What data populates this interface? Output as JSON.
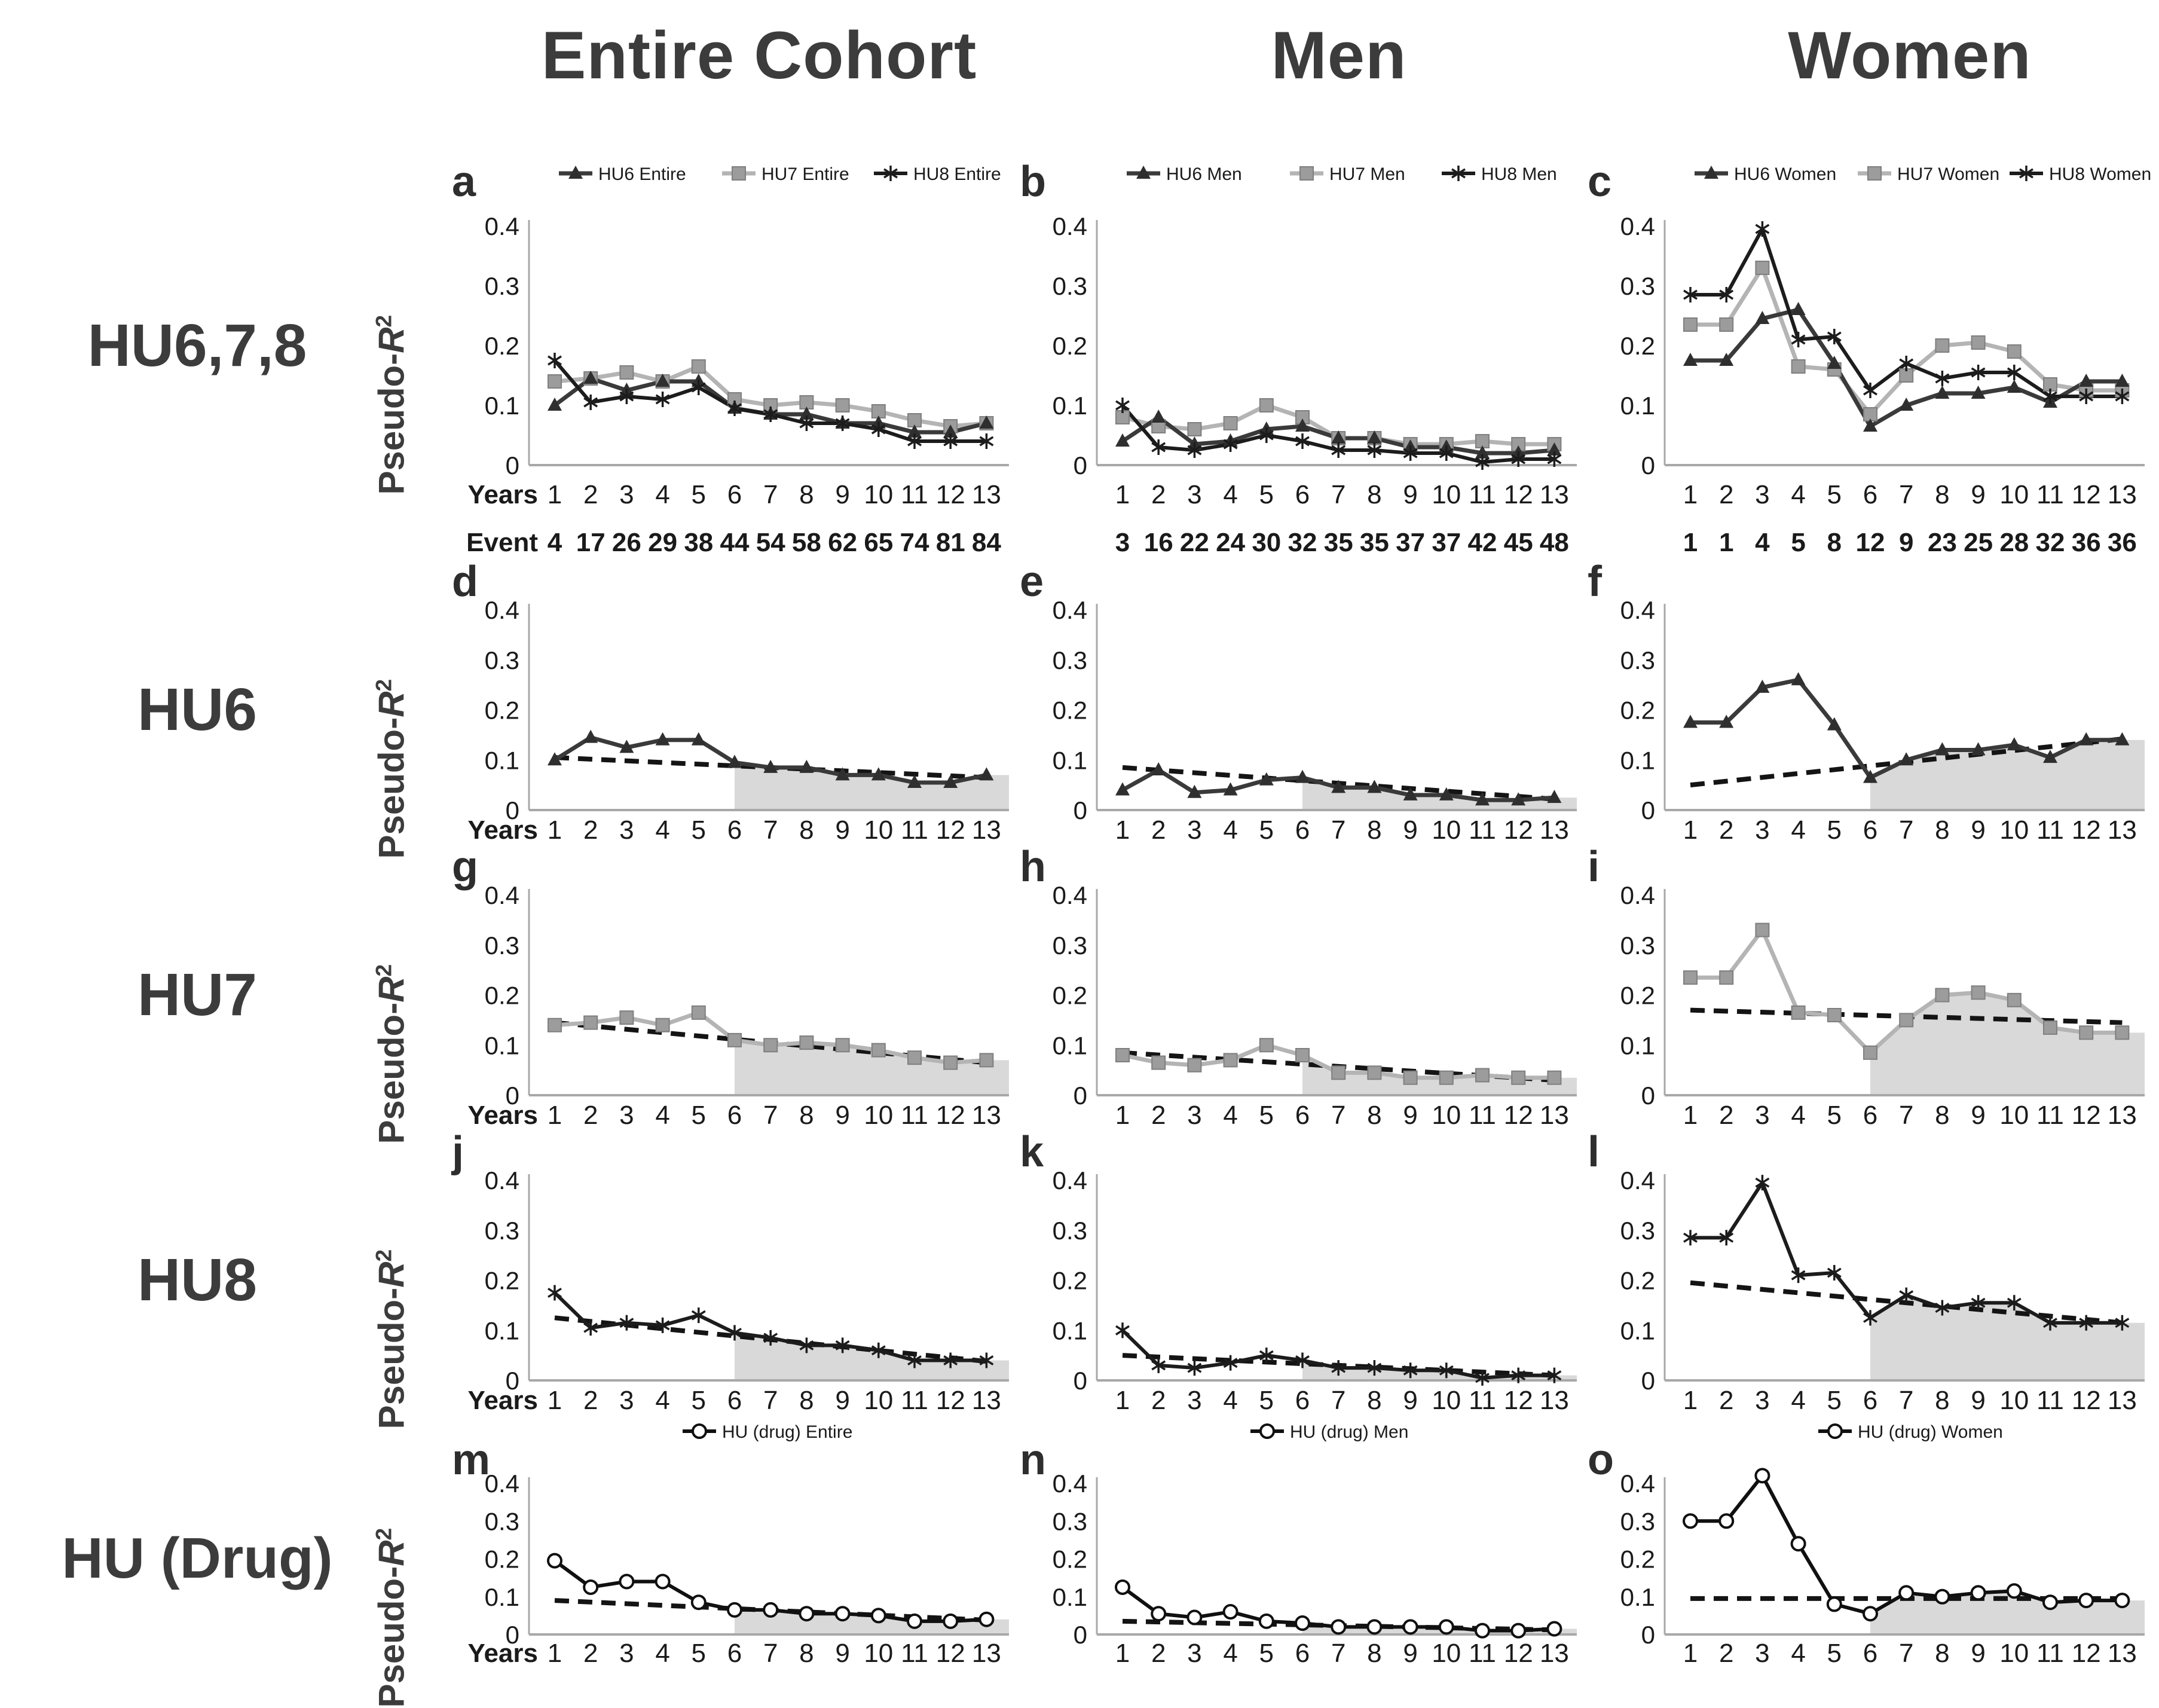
{
  "title_columns": [
    "Entire Cohort",
    "Men",
    "Women"
  ],
  "row_labels": [
    "HU6,7,8",
    "HU6",
    "HU7",
    "HU8",
    "HU (Drug)"
  ],
  "ylabel": {
    "prefix": "Pseudo-",
    "symbol": "R",
    "sup": "2"
  },
  "axis": {
    "ylim": [
      0,
      0.4
    ],
    "y_ticks": [
      "0.4",
      "0.3",
      "0.2",
      "0.1",
      "0"
    ],
    "x_ticks": [
      "1",
      "2",
      "3",
      "4",
      "5",
      "6",
      "7",
      "8",
      "9",
      "10",
      "11",
      "12",
      "13"
    ],
    "years_label": "Years",
    "event_label": "Event"
  },
  "layout": {
    "grid": false,
    "legend_position": "top center",
    "shaded_region_years": [
      6,
      13
    ]
  },
  "colors": {
    "hu6_line": "#3a3a3a",
    "hu6_fill": "#2f2f2f",
    "hu7_line": "#b4b4b4",
    "hu7_fill": "#9c9c9c",
    "hu7_edge": "#7f7f7f",
    "hu8_line": "#1c1c1c",
    "drug_line": "#101010",
    "trend": "#141414",
    "shade": "#d9d9d9",
    "axis": "#a8a8a8",
    "text": "#1a1a1a",
    "heading": "#3c3c3c"
  },
  "chart_data": [
    {
      "panel": "a",
      "row": 0,
      "col": 0,
      "type": "line",
      "show_legend": true,
      "show_years_label": true,
      "show_event_label": true,
      "events": [
        4,
        17,
        26,
        29,
        38,
        44,
        54,
        58,
        62,
        65,
        74,
        81,
        84
      ],
      "series": [
        {
          "name": "HU6 Entire",
          "marker": "triangle",
          "values": [
            0.1,
            0.145,
            0.125,
            0.14,
            0.14,
            0.095,
            0.085,
            0.085,
            0.07,
            0.07,
            0.055,
            0.055,
            0.07
          ]
        },
        {
          "name": "HU7 Entire",
          "marker": "square",
          "values": [
            0.14,
            0.145,
            0.155,
            0.14,
            0.165,
            0.11,
            0.1,
            0.105,
            0.1,
            0.09,
            0.075,
            0.065,
            0.07
          ]
        },
        {
          "name": "HU8 Entire",
          "marker": "asterisk",
          "values": [
            0.175,
            0.105,
            0.115,
            0.11,
            0.13,
            0.095,
            0.085,
            0.07,
            0.07,
            0.06,
            0.04,
            0.04,
            0.04
          ]
        }
      ],
      "trend": null,
      "shaded": false
    },
    {
      "panel": "b",
      "row": 0,
      "col": 1,
      "type": "line",
      "show_legend": true,
      "show_years_label": false,
      "show_event_label": false,
      "events": [
        3,
        16,
        22,
        24,
        30,
        32,
        35,
        35,
        37,
        37,
        42,
        45,
        48
      ],
      "series": [
        {
          "name": "HU6 Men",
          "marker": "triangle",
          "values": [
            0.04,
            0.08,
            0.035,
            0.04,
            0.06,
            0.065,
            0.045,
            0.045,
            0.03,
            0.03,
            0.02,
            0.02,
            0.025
          ]
        },
        {
          "name": "HU7 Men",
          "marker": "square",
          "values": [
            0.08,
            0.065,
            0.06,
            0.07,
            0.1,
            0.08,
            0.045,
            0.045,
            0.035,
            0.035,
            0.04,
            0.035,
            0.035
          ]
        },
        {
          "name": "HU8 Men",
          "marker": "asterisk",
          "values": [
            0.1,
            0.03,
            0.025,
            0.035,
            0.05,
            0.04,
            0.025,
            0.025,
            0.02,
            0.02,
            0.005,
            0.01,
            0.01
          ]
        }
      ],
      "trend": null,
      "shaded": false
    },
    {
      "panel": "c",
      "row": 0,
      "col": 2,
      "type": "line",
      "show_legend": true,
      "show_years_label": false,
      "show_event_label": false,
      "events": [
        1,
        1,
        4,
        5,
        8,
        12,
        9,
        23,
        25,
        28,
        32,
        36,
        36
      ],
      "series": [
        {
          "name": "HU6 Women",
          "marker": "triangle",
          "values": [
            0.175,
            0.175,
            0.245,
            0.26,
            0.17,
            0.065,
            0.1,
            0.12,
            0.12,
            0.13,
            0.105,
            0.14,
            0.14
          ]
        },
        {
          "name": "HU7 Women",
          "marker": "square",
          "values": [
            0.235,
            0.235,
            0.33,
            0.165,
            0.16,
            0.085,
            0.15,
            0.2,
            0.205,
            0.19,
            0.135,
            0.125,
            0.125
          ]
        },
        {
          "name": "HU8 Women",
          "marker": "asterisk",
          "values": [
            0.285,
            0.285,
            0.395,
            0.21,
            0.215,
            0.125,
            0.17,
            0.145,
            0.155,
            0.155,
            0.115,
            0.115,
            0.115
          ]
        }
      ],
      "trend": null,
      "shaded": false
    },
    {
      "panel": "d",
      "row": 1,
      "col": 0,
      "type": "line",
      "show_legend": false,
      "show_years_label": true,
      "show_event_label": false,
      "events": null,
      "series": [
        {
          "name": "HU6 Entire",
          "marker": "triangle",
          "values": [
            0.1,
            0.145,
            0.125,
            0.14,
            0.14,
            0.095,
            0.085,
            0.085,
            0.07,
            0.07,
            0.055,
            0.055,
            0.07
          ]
        }
      ],
      "trend": [
        0.105,
        0.065
      ],
      "shaded": true
    },
    {
      "panel": "e",
      "row": 1,
      "col": 1,
      "type": "line",
      "show_legend": false,
      "show_years_label": false,
      "show_event_label": false,
      "events": null,
      "series": [
        {
          "name": "HU6 Men",
          "marker": "triangle",
          "values": [
            0.04,
            0.08,
            0.035,
            0.04,
            0.06,
            0.065,
            0.045,
            0.045,
            0.03,
            0.03,
            0.02,
            0.02,
            0.025
          ]
        }
      ],
      "trend": [
        0.085,
        0.022
      ],
      "shaded": true
    },
    {
      "panel": "f",
      "row": 1,
      "col": 2,
      "type": "line",
      "show_legend": false,
      "show_years_label": false,
      "show_event_label": false,
      "events": null,
      "series": [
        {
          "name": "HU6 Women",
          "marker": "triangle",
          "values": [
            0.175,
            0.175,
            0.245,
            0.26,
            0.17,
            0.065,
            0.1,
            0.12,
            0.12,
            0.13,
            0.105,
            0.14,
            0.14
          ]
        }
      ],
      "trend": [
        0.05,
        0.142
      ],
      "shaded": true
    },
    {
      "panel": "g",
      "row": 2,
      "col": 0,
      "type": "line",
      "show_legend": false,
      "show_years_label": true,
      "show_event_label": false,
      "events": null,
      "series": [
        {
          "name": "HU7 Entire",
          "marker": "square",
          "values": [
            0.14,
            0.145,
            0.155,
            0.14,
            0.165,
            0.11,
            0.1,
            0.105,
            0.1,
            0.09,
            0.075,
            0.065,
            0.07
          ]
        }
      ],
      "trend": [
        0.145,
        0.065
      ],
      "shaded": true
    },
    {
      "panel": "h",
      "row": 2,
      "col": 1,
      "type": "line",
      "show_legend": false,
      "show_years_label": false,
      "show_event_label": false,
      "events": null,
      "series": [
        {
          "name": "HU7 Men",
          "marker": "square",
          "values": [
            0.08,
            0.065,
            0.06,
            0.07,
            0.1,
            0.08,
            0.045,
            0.045,
            0.035,
            0.035,
            0.04,
            0.035,
            0.035
          ]
        }
      ],
      "trend": [
        0.085,
        0.03
      ],
      "shaded": true
    },
    {
      "panel": "i",
      "row": 2,
      "col": 2,
      "type": "line",
      "show_legend": false,
      "show_years_label": false,
      "show_event_label": false,
      "events": null,
      "series": [
        {
          "name": "HU7 Women",
          "marker": "square",
          "values": [
            0.235,
            0.235,
            0.33,
            0.165,
            0.16,
            0.085,
            0.15,
            0.2,
            0.205,
            0.19,
            0.135,
            0.125,
            0.125
          ]
        }
      ],
      "trend": [
        0.17,
        0.145
      ],
      "shaded": true
    },
    {
      "panel": "j",
      "row": 3,
      "col": 0,
      "type": "line",
      "show_legend": false,
      "show_years_label": true,
      "show_event_label": false,
      "events": null,
      "series": [
        {
          "name": "HU8 Entire",
          "marker": "asterisk",
          "values": [
            0.175,
            0.105,
            0.115,
            0.11,
            0.13,
            0.095,
            0.085,
            0.07,
            0.07,
            0.06,
            0.04,
            0.04,
            0.04
          ]
        }
      ],
      "trend": [
        0.125,
        0.038
      ],
      "shaded": true
    },
    {
      "panel": "k",
      "row": 3,
      "col": 1,
      "type": "line",
      "show_legend": false,
      "show_years_label": false,
      "show_event_label": false,
      "events": null,
      "series": [
        {
          "name": "HU8 Men",
          "marker": "asterisk",
          "values": [
            0.1,
            0.03,
            0.025,
            0.035,
            0.05,
            0.04,
            0.025,
            0.025,
            0.02,
            0.02,
            0.005,
            0.01,
            0.01
          ]
        }
      ],
      "trend": [
        0.05,
        0.01
      ],
      "shaded": true
    },
    {
      "panel": "l",
      "row": 3,
      "col": 2,
      "type": "line",
      "show_legend": false,
      "show_years_label": false,
      "show_event_label": false,
      "events": null,
      "series": [
        {
          "name": "HU8 Women",
          "marker": "asterisk",
          "values": [
            0.285,
            0.285,
            0.395,
            0.21,
            0.215,
            0.125,
            0.17,
            0.145,
            0.155,
            0.155,
            0.115,
            0.115,
            0.115
          ]
        }
      ],
      "trend": [
        0.195,
        0.115
      ],
      "shaded": true
    },
    {
      "panel": "m",
      "row": 4,
      "col": 0,
      "type": "line",
      "show_legend": true,
      "show_years_label": true,
      "show_event_label": false,
      "events": null,
      "series": [
        {
          "name": "HU (drug) Entire",
          "marker": "circle",
          "values": [
            0.195,
            0.125,
            0.14,
            0.14,
            0.085,
            0.065,
            0.065,
            0.055,
            0.055,
            0.05,
            0.035,
            0.035,
            0.04
          ]
        }
      ],
      "trend": [
        0.09,
        0.038
      ],
      "shaded": true
    },
    {
      "panel": "n",
      "row": 4,
      "col": 1,
      "type": "line",
      "show_legend": true,
      "show_years_label": false,
      "show_event_label": false,
      "events": null,
      "series": [
        {
          "name": "HU (drug) Men",
          "marker": "circle",
          "values": [
            0.125,
            0.055,
            0.045,
            0.06,
            0.035,
            0.03,
            0.02,
            0.02,
            0.02,
            0.02,
            0.01,
            0.01,
            0.015
          ]
        }
      ],
      "trend": [
        0.035,
        0.012
      ],
      "shaded": true
    },
    {
      "panel": "o",
      "row": 4,
      "col": 2,
      "type": "line",
      "show_legend": true,
      "show_years_label": false,
      "show_event_label": false,
      "events": null,
      "series": [
        {
          "name": "HU (drug) Women",
          "marker": "circle",
          "values": [
            0.3,
            0.3,
            0.42,
            0.24,
            0.08,
            0.055,
            0.11,
            0.1,
            0.11,
            0.115,
            0.085,
            0.09,
            0.09
          ]
        }
      ],
      "trend": [
        0.095,
        0.095
      ],
      "shaded": true
    }
  ]
}
